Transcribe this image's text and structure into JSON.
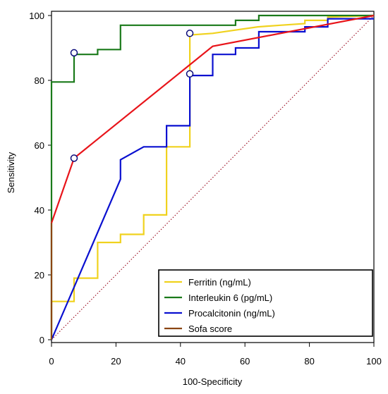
{
  "chart_data": {
    "type": "line",
    "title": "",
    "xlabel": "100-Specificity",
    "ylabel": "Sensitivity",
    "xlim": [
      0,
      100
    ],
    "ylim": [
      0,
      100
    ],
    "xticks": [
      "0",
      "20",
      "40",
      "60",
      "80",
      "100"
    ],
    "yticks": [
      "0",
      "20",
      "40",
      "60",
      "80",
      "100"
    ],
    "grid": false,
    "legend_position": "bottom-right",
    "reference_line": {
      "from": [
        0,
        0
      ],
      "to": [
        100,
        100
      ],
      "style": "dotted",
      "color": "#a0182c"
    },
    "series": [
      {
        "name": "Ferritin (ng/mL)",
        "color": "#f0d21e",
        "points": [
          [
            0,
            0
          ],
          [
            0,
            11.8
          ],
          [
            7,
            11.8
          ],
          [
            7,
            19
          ],
          [
            14.3,
            19
          ],
          [
            14.3,
            30
          ],
          [
            21.4,
            30
          ],
          [
            21.4,
            32.5
          ],
          [
            28.6,
            32.5
          ],
          [
            28.6,
            38.5
          ],
          [
            35.7,
            38.5
          ],
          [
            35.7,
            59.5
          ],
          [
            42.9,
            59.5
          ],
          [
            42.9,
            94
          ],
          [
            50,
            94.5
          ],
          [
            57,
            95.5
          ],
          [
            64,
            96.5
          ],
          [
            71,
            97
          ],
          [
            78.6,
            97.5
          ],
          [
            78.6,
            98.5
          ],
          [
            85.7,
            98.5
          ],
          [
            85.7,
            99.5
          ],
          [
            100,
            100
          ]
        ],
        "marker": [
          42.9,
          94.5
        ]
      },
      {
        "name": "Interleukin 6 (pg/mL)",
        "color": "#1a7a1a",
        "points": [
          [
            0,
            0
          ],
          [
            0,
            79.5
          ],
          [
            7,
            79.5
          ],
          [
            7,
            88
          ],
          [
            14.3,
            88
          ],
          [
            14.3,
            89.5
          ],
          [
            21.4,
            89.5
          ],
          [
            21.4,
            97
          ],
          [
            57.1,
            97
          ],
          [
            57.1,
            98.5
          ],
          [
            64.3,
            98.5
          ],
          [
            64.3,
            100
          ],
          [
            100,
            100
          ]
        ],
        "marker": [
          7,
          88.5
        ]
      },
      {
        "name": "Procalcitonin (ng/mL)",
        "color": "#0a10d0",
        "points": [
          [
            0,
            0
          ],
          [
            21.4,
            49.5
          ],
          [
            21.4,
            55.5
          ],
          [
            28.6,
            59.5
          ],
          [
            35.7,
            59.5
          ],
          [
            35.7,
            66
          ],
          [
            42.9,
            66
          ],
          [
            42.9,
            81.5
          ],
          [
            50,
            81.5
          ],
          [
            50,
            88
          ],
          [
            57.1,
            88
          ],
          [
            57.1,
            90
          ],
          [
            64.3,
            90
          ],
          [
            64.3,
            95
          ],
          [
            78.6,
            95
          ],
          [
            78.6,
            96.5
          ],
          [
            85.7,
            96.5
          ],
          [
            85.7,
            99
          ],
          [
            100,
            99
          ]
        ],
        "marker": [
          42.9,
          82
        ]
      },
      {
        "name": "Sofa score",
        "color": "#8b4513",
        "points": [
          [
            0,
            0
          ],
          [
            0,
            36
          ]
        ],
        "marker": null
      },
      {
        "name": "",
        "color": "#e8141a",
        "points": [
          [
            0,
            36
          ],
          [
            7,
            56
          ],
          [
            50,
            90.5
          ],
          [
            100,
            100
          ]
        ],
        "marker": [
          7,
          56
        ]
      }
    ]
  }
}
